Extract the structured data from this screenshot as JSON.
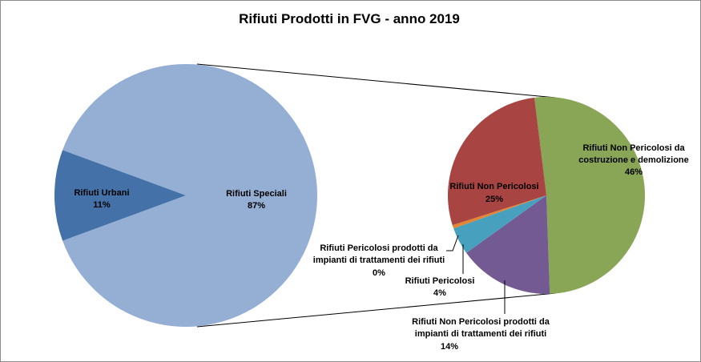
{
  "chart_data": {
    "type": "pie",
    "title": "Rifiuti Prodotti  in FVG - anno 2019",
    "colors": {
      "urbani": "#4472a8",
      "speciali": "#95aed4",
      "non_pericolosi": "#a84543",
      "cd": "#89a556",
      "trattamento": "#735a92",
      "pericolosi": "#46a0be",
      "pericolosi_tratt": "#e48534",
      "leader_line": "#000000"
    },
    "main_pie": {
      "slices": [
        {
          "name": "Rifiuti Speciali",
          "value": 87,
          "label": "Rifiuti Speciali",
          "pct": "87%"
        },
        {
          "name": "Rifiuti Urbani",
          "value": 11,
          "label": "Rifiuti Urbani",
          "pct": "11%"
        }
      ]
    },
    "secondary_pie": {
      "slices": [
        {
          "name": "Rifiuti Non Pericolosi da costruzione e demolizione",
          "value": 46,
          "label_lines": [
            "Rifiuti Non Pericolosi da",
            "costruzione  e demolizione"
          ],
          "pct": "46%"
        },
        {
          "name": "Rifiuti Non Pericolosi prodotti da impianti di trattamenti dei rifiuti",
          "value": 14,
          "label_lines": [
            "Rifiuti Non Pericolosi  prodotti  da",
            "impianti di trattamenti dei rifiuti"
          ],
          "pct": "14%"
        },
        {
          "name": "Rifiuti Pericolosi",
          "value": 4,
          "label_lines": [
            "Rifiuti Pericolosi"
          ],
          "pct": "4%"
        },
        {
          "name": "Rifiuti Pericolosi prodotti da impianti di trattamenti dei rifiuti",
          "value": 0.5,
          "label_lines": [
            "Rifiuti Pericolosi  prodotti  da",
            "impianti  di trattamenti dei rifiuti"
          ],
          "pct": "0%"
        },
        {
          "name": "Rifiuti Non Pericolosi",
          "value": 25,
          "label_lines": [
            "Rifiuti Non Pericolosi"
          ],
          "pct": "25%"
        }
      ]
    }
  }
}
